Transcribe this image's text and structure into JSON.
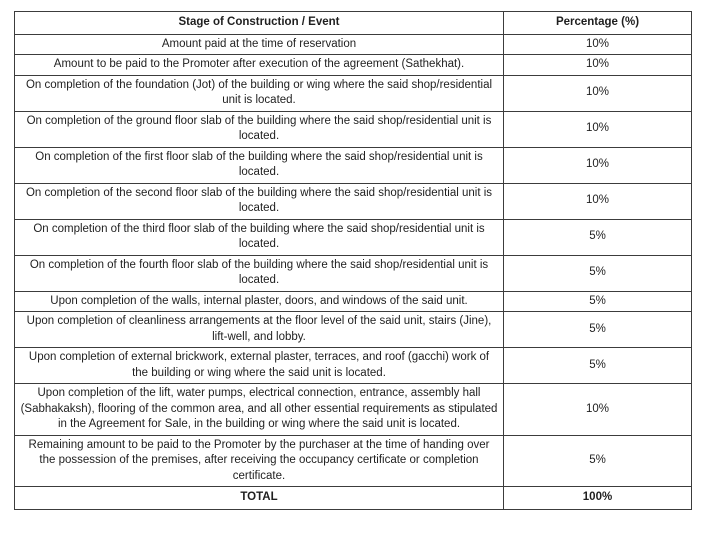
{
  "colors": {
    "border": "#3c3c3c",
    "text": "#1f1f1f",
    "background": "#ffffff"
  },
  "table": {
    "headers": {
      "stage": "Stage of Construction / Event",
      "percentage": "Percentage (%)"
    },
    "rows": [
      {
        "stage": "Amount paid at the time of reservation",
        "percentage": "10%"
      },
      {
        "stage": "Amount to be paid to the Promoter after execution of the agreement (Sathekhat).",
        "percentage": "10%"
      },
      {
        "stage": "On completion of the foundation (Jot) of the building or wing where the said shop/residential unit is located.",
        "percentage": "10%"
      },
      {
        "stage": "On completion of the ground floor slab of the building where the said shop/residential unit is located.",
        "percentage": "10%"
      },
      {
        "stage": "On completion of the first floor slab of the building where the said shop/residential unit is located.",
        "percentage": "10%"
      },
      {
        "stage": "On completion of the second floor slab of the building where the said shop/residential unit is located.",
        "percentage": "10%"
      },
      {
        "stage": "On completion of the third floor slab of the building where the said shop/residential unit is located.",
        "percentage": "5%"
      },
      {
        "stage": "On completion of the fourth floor slab of the building where the said shop/residential unit is located.",
        "percentage": "5%"
      },
      {
        "stage": "Upon completion of the walls, internal plaster, doors, and windows of the said unit.",
        "percentage": "5%"
      },
      {
        "stage": "Upon completion of cleanliness arrangements at the floor level of the said unit, stairs (Jine), lift-well, and lobby.",
        "percentage": "5%"
      },
      {
        "stage": "Upon completion of external brickwork, external plaster, terraces, and roof (gacchi) work of the building or wing where the said unit is located.",
        "percentage": "5%"
      },
      {
        "stage": "Upon completion of the lift, water pumps, electrical connection, entrance, assembly hall (Sabhakaksh), flooring of the common area, and all other essential requirements as stipulated in the Agreement for Sale, in the building or wing where the said unit is located.",
        "percentage": "10%"
      },
      {
        "stage": "Remaining amount to be paid to the Promoter by the purchaser at the time of handing over the possession of the premises, after receiving the occupancy certificate or completion certificate.",
        "percentage": "5%"
      }
    ],
    "total": {
      "label": "TOTAL",
      "percentage": "100%"
    }
  }
}
